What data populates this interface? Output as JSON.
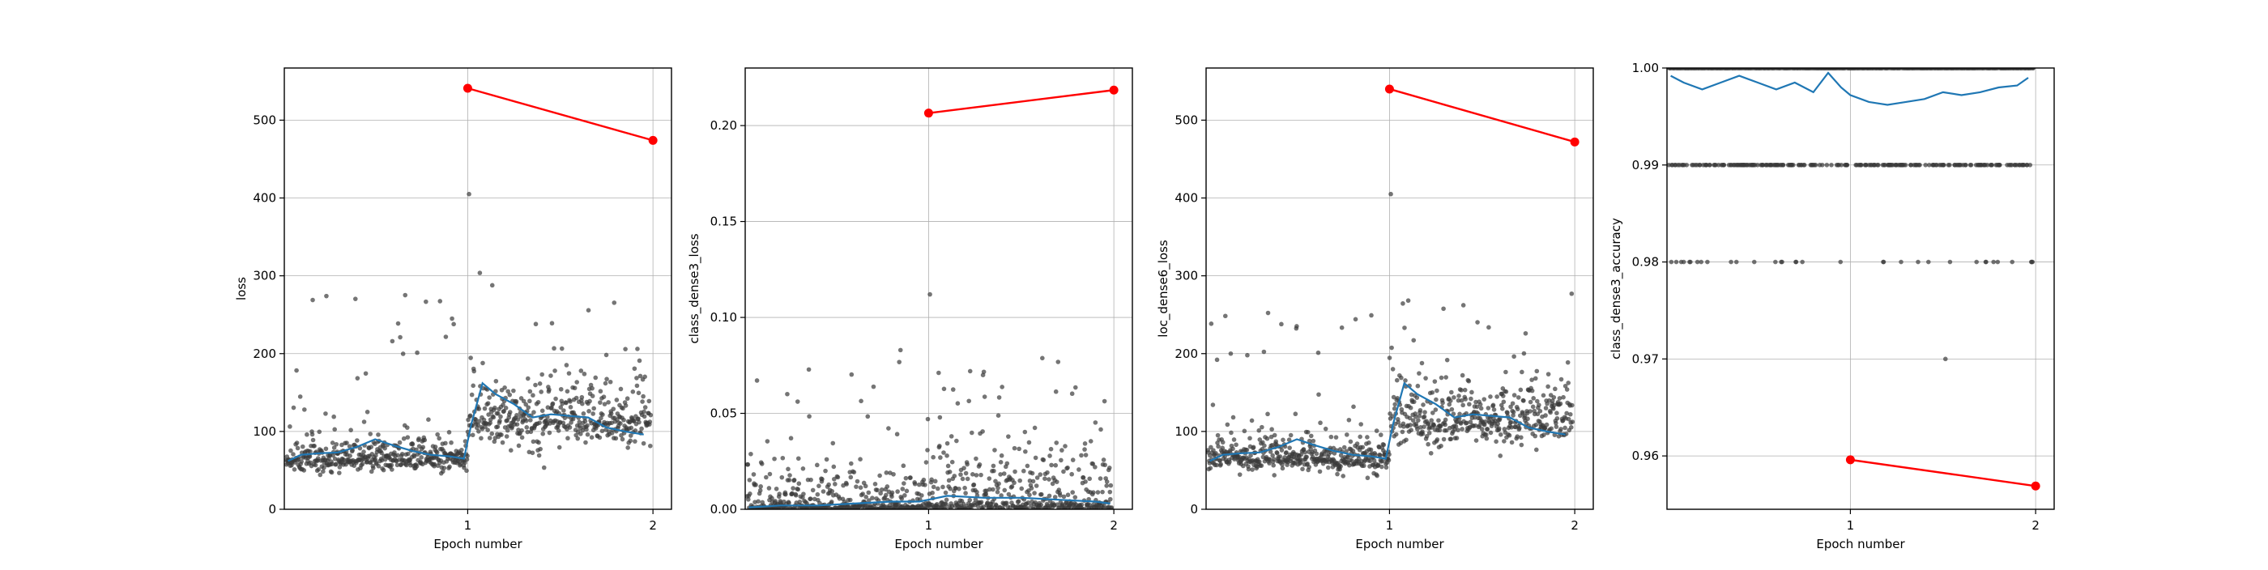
{
  "chart_data": [
    {
      "type": "scatter",
      "xlabel": "Epoch number",
      "ylabel": "loss",
      "xlim": [
        0.01,
        2.1
      ],
      "ylim": [
        0,
        567
      ],
      "xticks": [
        1,
        2
      ],
      "yticks": [
        0,
        100,
        200,
        300,
        400,
        500
      ],
      "grid": true,
      "colors": {
        "points": "#3a3a3a",
        "smooth": "#1f77b4",
        "epoch": "#ff0000"
      },
      "batch_profile": {
        "base1": 65,
        "base2": 115,
        "spread1": 18,
        "spread2": 35,
        "spike_max": 405
      },
      "smooth": {
        "x": [
          0.03,
          0.1,
          0.2,
          0.3,
          0.4,
          0.5,
          0.6,
          0.7,
          0.8,
          0.9,
          0.98,
          1.02,
          1.08,
          1.15,
          1.25,
          1.35,
          1.45,
          1.55,
          1.65,
          1.75,
          1.85,
          1.95
        ],
        "y": [
          62,
          70,
          72,
          73,
          80,
          90,
          82,
          75,
          70,
          68,
          65,
          110,
          162,
          148,
          135,
          118,
          122,
          120,
          118,
          105,
          100,
          96
        ]
      },
      "epoch_points": {
        "x": [
          1,
          2
        ],
        "y": [
          541,
          474
        ]
      }
    },
    {
      "type": "scatter",
      "xlabel": "Epoch number",
      "ylabel": "class_dense3_loss",
      "xlim": [
        0.01,
        2.1
      ],
      "ylim": [
        0,
        0.23
      ],
      "xticks": [
        1,
        2
      ],
      "yticks": [
        0.0,
        0.05,
        0.1,
        0.15,
        0.2
      ],
      "ytick_labels": [
        "0.00",
        "0.05",
        "0.10",
        "0.15",
        "0.20"
      ],
      "grid": true,
      "colors": {
        "points": "#3a3a3a",
        "smooth": "#1f77b4",
        "epoch": "#ff0000"
      },
      "batch_profile": {
        "base1": 0.001,
        "base2": 0.002,
        "spread1": 0.012,
        "spread2": 0.02,
        "spike_max": 0.112
      },
      "smooth": {
        "x": [
          0.03,
          0.2,
          0.4,
          0.6,
          0.8,
          0.95,
          1.1,
          1.3,
          1.5,
          1.7,
          1.9,
          1.98
        ],
        "y": [
          0.001,
          0.002,
          0.002,
          0.003,
          0.004,
          0.004,
          0.007,
          0.006,
          0.006,
          0.005,
          0.004,
          0.003
        ]
      },
      "epoch_points": {
        "x": [
          1,
          2
        ],
        "y": [
          0.2065,
          0.2185
        ]
      }
    },
    {
      "type": "scatter",
      "xlabel": "Epoch number",
      "ylabel": "loc_dense6_loss",
      "xlim": [
        0.01,
        2.1
      ],
      "ylim": [
        0,
        567
      ],
      "xticks": [
        1,
        2
      ],
      "yticks": [
        0,
        100,
        200,
        300,
        400,
        500
      ],
      "grid": true,
      "colors": {
        "points": "#3a3a3a",
        "smooth": "#1f77b4",
        "epoch": "#ff0000"
      },
      "batch_profile": {
        "base1": 65,
        "base2": 115,
        "spread1": 18,
        "spread2": 35,
        "spike_max": 405
      },
      "smooth": {
        "x": [
          0.03,
          0.1,
          0.2,
          0.3,
          0.4,
          0.5,
          0.6,
          0.7,
          0.8,
          0.9,
          0.98,
          1.02,
          1.08,
          1.15,
          1.25,
          1.35,
          1.45,
          1.55,
          1.65,
          1.75,
          1.85,
          1.95
        ],
        "y": [
          62,
          70,
          72,
          73,
          80,
          90,
          82,
          75,
          70,
          68,
          65,
          110,
          162,
          148,
          135,
          118,
          122,
          120,
          118,
          105,
          100,
          96
        ]
      },
      "epoch_points": {
        "x": [
          1,
          2
        ],
        "y": [
          540,
          472
        ]
      }
    },
    {
      "type": "scatter",
      "xlabel": "Epoch number",
      "ylabel": "class_dense3_accuracy",
      "xlim": [
        0.01,
        2.1
      ],
      "ylim": [
        0.9545,
        1.0
      ],
      "xticks": [
        1,
        2
      ],
      "yticks": [
        0.96,
        0.97,
        0.98,
        0.99,
        1.0
      ],
      "ytick_labels": [
        "0.96",
        "0.97",
        "0.98",
        "0.99",
        "1.00"
      ],
      "grid": true,
      "colors": {
        "points": "#3a3a3a",
        "smooth": "#1f77b4",
        "epoch": "#ff0000"
      },
      "accuracy_levels": [
        1.0,
        0.99,
        0.98,
        0.97
      ],
      "smooth": {
        "x": [
          0.03,
          0.1,
          0.2,
          0.3,
          0.4,
          0.5,
          0.6,
          0.7,
          0.8,
          0.88,
          0.95,
          1.0,
          1.1,
          1.2,
          1.3,
          1.4,
          1.5,
          1.6,
          1.7,
          1.8,
          1.9,
          1.96
        ],
        "y": [
          0.9992,
          0.9985,
          0.9978,
          0.9985,
          0.9992,
          0.9985,
          0.9978,
          0.9985,
          0.9975,
          0.9995,
          0.998,
          0.9972,
          0.9965,
          0.9962,
          0.9965,
          0.9968,
          0.9975,
          0.9972,
          0.9975,
          0.998,
          0.9982,
          0.999
        ]
      },
      "epoch_points": {
        "x": [
          1,
          2
        ],
        "y": [
          0.9596,
          0.9569
        ]
      }
    }
  ]
}
